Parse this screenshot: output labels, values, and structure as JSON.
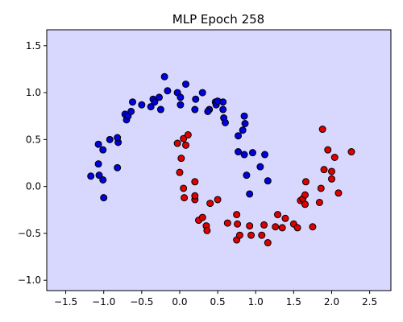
{
  "chart_data": {
    "type": "scatter",
    "title": "MLP Epoch 258",
    "xlabel": "",
    "ylabel": "",
    "xlim": [
      -1.75,
      2.78
    ],
    "ylim": [
      -1.11,
      1.67
    ],
    "x_ticks": [
      -1.5,
      -1.0,
      -0.5,
      0.0,
      0.5,
      1.0,
      1.5,
      2.0,
      2.5
    ],
    "x_tick_labels": [
      "−1.5",
      "−1.0",
      "−0.5",
      "0.0",
      "0.5",
      "1.0",
      "1.5",
      "2.0",
      "2.5"
    ],
    "y_ticks": [
      -1.0,
      -0.5,
      0.0,
      0.5,
      1.0,
      1.5
    ],
    "y_tick_labels": [
      "−1.0",
      "−0.5",
      "0.0",
      "0.5",
      "1.0",
      "1.5"
    ],
    "grid": false,
    "background_color": "#d8d8ff",
    "series": [
      {
        "color": "#0000dd",
        "points": [
          [
            -1.17,
            0.11
          ],
          [
            -1.06,
            0.12
          ],
          [
            -1.07,
            0.24
          ],
          [
            -1.01,
            0.07
          ],
          [
            -1.0,
            -0.12
          ],
          [
            -1.07,
            0.45
          ],
          [
            -1.01,
            0.39
          ],
          [
            -0.92,
            0.5
          ],
          [
            -0.81,
            0.47
          ],
          [
            -0.82,
            0.52
          ],
          [
            -0.82,
            0.2
          ],
          [
            -0.72,
            0.77
          ],
          [
            -0.7,
            0.71
          ],
          [
            -0.68,
            0.75
          ],
          [
            -0.64,
            0.8
          ],
          [
            -0.62,
            0.9
          ],
          [
            -0.5,
            0.87
          ],
          [
            -0.38,
            0.85
          ],
          [
            -0.35,
            0.93
          ],
          [
            -0.33,
            0.9
          ],
          [
            -0.27,
            0.95
          ],
          [
            -0.25,
            0.82
          ],
          [
            -0.2,
            1.17
          ],
          [
            -0.16,
            1.02
          ],
          [
            -0.03,
            1.0
          ],
          [
            0.01,
            0.95
          ],
          [
            0.01,
            0.87
          ],
          [
            0.08,
            1.09
          ],
          [
            0.2,
            0.82
          ],
          [
            0.21,
            0.93
          ],
          [
            0.3,
            1.0
          ],
          [
            0.39,
            0.82
          ],
          [
            0.37,
            0.8
          ],
          [
            0.47,
            0.9
          ],
          [
            0.48,
            0.87
          ],
          [
            0.5,
            0.91
          ],
          [
            0.57,
            0.82
          ],
          [
            0.57,
            0.9
          ],
          [
            0.58,
            0.73
          ],
          [
            0.6,
            0.68
          ],
          [
            0.77,
            0.54
          ],
          [
            0.77,
            0.37
          ],
          [
            0.83,
            0.6
          ],
          [
            0.86,
            0.67
          ],
          [
            0.85,
            0.75
          ],
          [
            0.85,
            0.34
          ],
          [
            0.88,
            0.12
          ],
          [
            0.92,
            -0.08
          ],
          [
            0.96,
            0.36
          ],
          [
            1.06,
            0.21
          ],
          [
            1.12,
            0.34
          ],
          [
            1.16,
            0.06
          ]
        ]
      },
      {
        "color": "#dd0000",
        "points": [
          [
            -0.03,
            0.46
          ],
          [
            0.05,
            0.51
          ],
          [
            0.08,
            0.44
          ],
          [
            0.11,
            0.55
          ],
          [
            0.0,
            0.15
          ],
          [
            0.02,
            0.3
          ],
          [
            0.05,
            -0.02
          ],
          [
            0.06,
            -0.12
          ],
          [
            0.2,
            -0.14
          ],
          [
            0.2,
            -0.1
          ],
          [
            0.2,
            0.05
          ],
          [
            0.25,
            -0.36
          ],
          [
            0.3,
            -0.33
          ],
          [
            0.35,
            -0.42
          ],
          [
            0.36,
            -0.47
          ],
          [
            0.4,
            -0.18
          ],
          [
            0.5,
            -0.14
          ],
          [
            0.63,
            -0.39
          ],
          [
            0.75,
            -0.3
          ],
          [
            0.76,
            -0.4
          ],
          [
            0.75,
            -0.57
          ],
          [
            0.79,
            -0.52
          ],
          [
            0.92,
            -0.42
          ],
          [
            0.94,
            -0.52
          ],
          [
            1.08,
            -0.52
          ],
          [
            1.11,
            -0.41
          ],
          [
            1.16,
            -0.6
          ],
          [
            1.26,
            -0.43
          ],
          [
            1.29,
            -0.3
          ],
          [
            1.35,
            -0.44
          ],
          [
            1.39,
            -0.34
          ],
          [
            1.5,
            -0.4
          ],
          [
            1.55,
            -0.44
          ],
          [
            1.59,
            -0.15
          ],
          [
            1.62,
            -0.13
          ],
          [
            1.65,
            -0.09
          ],
          [
            1.65,
            -0.19
          ],
          [
            1.66,
            0.05
          ],
          [
            1.75,
            -0.43
          ],
          [
            1.84,
            -0.17
          ],
          [
            1.86,
            -0.02
          ],
          [
            1.88,
            0.61
          ],
          [
            1.9,
            0.18
          ],
          [
            1.95,
            0.39
          ],
          [
            2.0,
            0.16
          ],
          [
            2.0,
            0.08
          ],
          [
            2.04,
            0.31
          ],
          [
            2.09,
            -0.07
          ],
          [
            2.26,
            0.37
          ]
        ]
      }
    ]
  }
}
